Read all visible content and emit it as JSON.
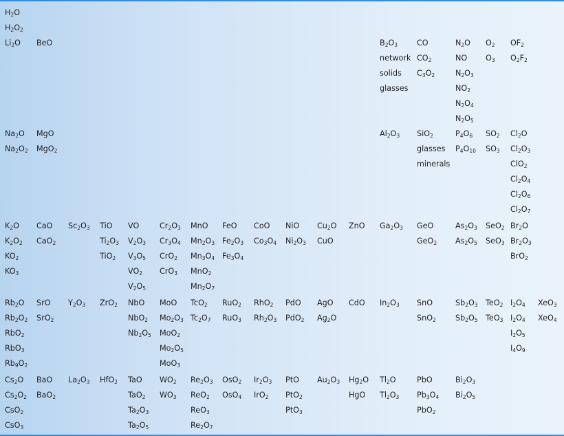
{
  "cells": [
    {
      "id": "h",
      "items": [
        "H_2O",
        "H_2O_2"
      ]
    },
    {
      "id": "li",
      "items": [
        "Li_2O"
      ]
    },
    {
      "id": "be",
      "items": [
        "BeO"
      ]
    },
    {
      "id": "b",
      "items": [
        "B_2O_3",
        "network",
        "solids",
        "glasses"
      ]
    },
    {
      "id": "c",
      "items": [
        "CO",
        "CO_2",
        "C_3O_2"
      ]
    },
    {
      "id": "n",
      "items": [
        "N_2O",
        "NO",
        "N_2O_3",
        "NO_2",
        "N_2O_4",
        "N_2O_5"
      ]
    },
    {
      "id": "o",
      "items": [
        "O_2",
        "O_3"
      ]
    },
    {
      "id": "f",
      "items": [
        "OF_2",
        "O_2F_2"
      ]
    },
    {
      "id": "na",
      "items": [
        "Na_2O",
        "Na_2O_2"
      ]
    },
    {
      "id": "mg",
      "items": [
        "MgO",
        "MgO_2"
      ]
    },
    {
      "id": "al",
      "items": [
        "Al_2O_3"
      ]
    },
    {
      "id": "si",
      "items": [
        "SiO_2",
        "glasses",
        "minerals"
      ]
    },
    {
      "id": "p",
      "items": [
        "P_4O_6",
        "P_4O_10"
      ]
    },
    {
      "id": "s",
      "items": [
        "SO_2",
        "SO_3"
      ]
    },
    {
      "id": "cl",
      "items": [
        "Cl_2O",
        "Cl_2O_3",
        "ClO_2",
        "Cl_2O_4",
        "Cl_2O_6",
        "Cl_2O_7"
      ]
    },
    {
      "id": "k",
      "items": [
        "K_2O",
        "K_2O_2",
        "KO_2",
        "KO_3"
      ]
    },
    {
      "id": "ca",
      "items": [
        "CaO",
        "CaO_2"
      ]
    },
    {
      "id": "sc",
      "items": [
        "Sc_2O_3"
      ]
    },
    {
      "id": "ti",
      "items": [
        "TiO",
        "Ti_2O_3",
        "TiO_2"
      ]
    },
    {
      "id": "v",
      "items": [
        "VO",
        "V_2O_3",
        "V_3O_5",
        "VO_2",
        "V_2O_5"
      ]
    },
    {
      "id": "cr",
      "items": [
        "Cr_2O_3",
        "Cr_3O_4",
        "CrO_2",
        "CrO_3"
      ]
    },
    {
      "id": "mn",
      "items": [
        "MnO",
        "Mn_2O_3",
        "Mn_3O_4",
        "MnO_2",
        "Mn_2O_7"
      ]
    },
    {
      "id": "fe",
      "items": [
        "FeO",
        "Fe_2O_3",
        "Fe_3O_4"
      ]
    },
    {
      "id": "co",
      "items": [
        "CoO",
        "Co_3O_4"
      ]
    },
    {
      "id": "ni",
      "items": [
        "NiO",
        "Ni_2O_3"
      ]
    },
    {
      "id": "cu",
      "items": [
        "Cu_2O",
        "CuO"
      ]
    },
    {
      "id": "zn",
      "items": [
        "ZnO"
      ]
    },
    {
      "id": "ga",
      "items": [
        "Ga_2O_3"
      ]
    },
    {
      "id": "ge",
      "items": [
        "GeO",
        "GeO_2"
      ]
    },
    {
      "id": "as",
      "items": [
        "As_2O_3",
        "As_2O_5"
      ]
    },
    {
      "id": "se",
      "items": [
        "SeO_2",
        "SeO_3"
      ]
    },
    {
      "id": "br",
      "items": [
        "Br_2O",
        "Br_2O_3",
        "BrO_2"
      ]
    },
    {
      "id": "rb",
      "items": [
        "Rb_2O",
        "Rb_2O_2",
        "RbO_2",
        "RbO_3",
        "Rb_9O_2"
      ]
    },
    {
      "id": "sr",
      "items": [
        "SrO",
        "SrO_2"
      ]
    },
    {
      "id": "y",
      "items": [
        "Y_2O_3"
      ]
    },
    {
      "id": "zr",
      "items": [
        "ZrO_2"
      ]
    },
    {
      "id": "nb",
      "items": [
        "NbO",
        "NbO_2",
        "Nb_2O_5"
      ]
    },
    {
      "id": "mo",
      "items": [
        "MoO",
        "Mo_2O_3",
        "MoO_2",
        "Mo_2O_5",
        "MoO_3"
      ]
    },
    {
      "id": "tc",
      "items": [
        "TcO_2",
        "Tc_2O_7"
      ]
    },
    {
      "id": "ru",
      "items": [
        "RuO_2",
        "RuO_3"
      ]
    },
    {
      "id": "rh",
      "items": [
        "RhO_2",
        "Rh_2O_3"
      ]
    },
    {
      "id": "pd",
      "items": [
        "PdO",
        "PdO_2"
      ]
    },
    {
      "id": "ag",
      "items": [
        "AgO",
        "Ag_2O"
      ]
    },
    {
      "id": "cd",
      "items": [
        "CdO"
      ]
    },
    {
      "id": "in",
      "items": [
        "In_2O_3"
      ]
    },
    {
      "id": "sn",
      "items": [
        "SnO",
        "SnO_2"
      ]
    },
    {
      "id": "sb",
      "items": [
        "Sb_2O_3",
        "Sb_2O_5"
      ]
    },
    {
      "id": "te",
      "items": [
        "TeO_2",
        "TeO_3"
      ]
    },
    {
      "id": "i",
      "items": [
        "I_2O_4",
        "I_2O_4",
        "I_2O_5",
        "I_4O_9"
      ]
    },
    {
      "id": "xe",
      "items": [
        "XeO_3",
        "XeO_4"
      ]
    },
    {
      "id": "cs",
      "items": [
        "Cs_2O",
        "Cs_2O_2",
        "CsO_2",
        "CsO_3"
      ]
    },
    {
      "id": "ba",
      "items": [
        "BaO",
        "BaO_2"
      ]
    },
    {
      "id": "la",
      "items": [
        "La_2O_3"
      ]
    },
    {
      "id": "hf",
      "items": [
        "HfO_2"
      ]
    },
    {
      "id": "ta",
      "items": [
        "TaO",
        "TaO_2",
        "Ta_2O_3",
        "Ta_2O_5"
      ]
    },
    {
      "id": "w",
      "items": [
        "WO_2",
        "WO_3"
      ]
    },
    {
      "id": "re",
      "items": [
        "Re_2O_3",
        "ReO_2",
        "ReO_3",
        "Re_2O_7"
      ]
    },
    {
      "id": "os",
      "items": [
        "OsO_2",
        "OsO_4"
      ]
    },
    {
      "id": "ir",
      "items": [
        "Ir_2O_3",
        "IrO_2"
      ]
    },
    {
      "id": "pt",
      "items": [
        "PtO",
        "PtO_2",
        "PtO_3"
      ]
    },
    {
      "id": "au",
      "items": [
        "Au_2O_3"
      ]
    },
    {
      "id": "hg",
      "items": [
        "Hg_2O",
        "HgO"
      ]
    },
    {
      "id": "tl",
      "items": [
        "Tl_2O",
        "Tl_2O_3"
      ]
    },
    {
      "id": "pb",
      "items": [
        "PbO",
        "Pb_3O_4",
        "PbO_2"
      ]
    },
    {
      "id": "bi",
      "items": [
        "Bi_2O_3",
        "Bi_2O_5"
      ]
    }
  ]
}
